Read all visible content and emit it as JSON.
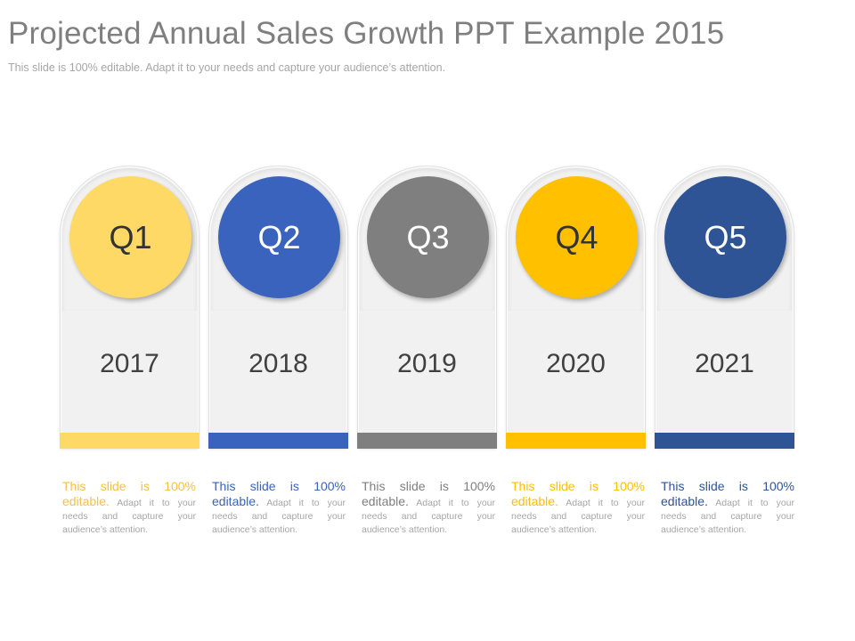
{
  "slide": {
    "title": "Projected Annual Sales Growth PPT Example 2015",
    "subtitle": "This slide is 100% editable. Adapt it to your needs and capture your audience’s attention."
  },
  "cards": [
    {
      "quarter": "Q1",
      "year": "2017",
      "color": "#FFD966",
      "text_color": "#333333",
      "lead_color": "#F2C14A",
      "lead": "This slide is 100% editable.",
      "body": " Adapt it to your needs and capture your audience’s attention."
    },
    {
      "quarter": "Q2",
      "year": "2018",
      "color": "#3A63BD",
      "text_color": "#ffffff",
      "lead_color": "#3A63BD",
      "lead": "This slide is 100% editable.",
      "body": " Adapt it to your needs and capture your audience’s attention."
    },
    {
      "quarter": "Q3",
      "year": "2019",
      "color": "#7F7F7F",
      "text_color": "#ffffff",
      "lead_color": "#7F7F7F",
      "lead": "This slide is 100% editable.",
      "body": " Adapt it to your needs and capture your audience’s attention."
    },
    {
      "quarter": "Q4",
      "year": "2020",
      "color": "#FFC000",
      "text_color": "#333333",
      "lead_color": "#FFC000",
      "lead": "This slide is 100% editable.",
      "body": " Adapt it to your needs and capture your audience’s attention."
    },
    {
      "quarter": "Q5",
      "year": "2021",
      "color": "#2F5496",
      "text_color": "#ffffff",
      "lead_color": "#2F5496",
      "lead": "This slide is 100% editable.",
      "body": " Adapt it to your needs and capture your audience’s attention."
    }
  ]
}
